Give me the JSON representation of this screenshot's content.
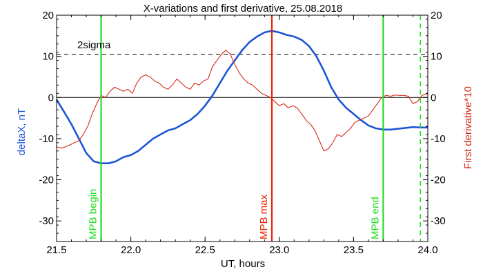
{
  "chart_data": {
    "type": "line",
    "title": "X-variations and first derivative, 25.08.2018",
    "xlabel": "UT, hours",
    "ylabel_left": "deltaX, nT",
    "ylabel_right": "First derivative*10",
    "xlim": [
      21.5,
      24.0
    ],
    "ylim": [
      -35,
      20
    ],
    "x_ticks": [
      21.5,
      22.0,
      22.5,
      23.0,
      23.5,
      24.0
    ],
    "x_tick_labels": [
      "21.5",
      "22.0",
      "22.5",
      "23.0",
      "23.5",
      "24.0"
    ],
    "y_ticks": [
      20,
      10,
      0,
      -10,
      -20,
      -30
    ],
    "y_tick_labels": [
      "20",
      "10",
      "0",
      "-10",
      "-20",
      "-30"
    ],
    "threshold": {
      "label": "2sigma",
      "y": 10.5
    },
    "zero_line": 0,
    "markers": [
      {
        "label": "MPB begin",
        "x": 21.8,
        "color": "#22dd22",
        "style": "solid"
      },
      {
        "label": "MPB max",
        "x": 22.95,
        "color": "#ee2200",
        "style": "solid"
      },
      {
        "label": "MPB end",
        "x": 23.7,
        "color": "#22dd22",
        "style": "solid"
      },
      {
        "label": "",
        "x": 23.95,
        "color": "#22dd22",
        "style": "dashed"
      }
    ],
    "series": [
      {
        "axis": "left",
        "color": "#1d55d4",
        "x": [
          21.5,
          21.55,
          21.6,
          21.65,
          21.7,
          21.75,
          21.8,
          21.85,
          21.9,
          21.95,
          22.0,
          22.05,
          22.1,
          22.15,
          22.2,
          22.25,
          22.3,
          22.35,
          22.4,
          22.45,
          22.5,
          22.55,
          22.6,
          22.65,
          22.7,
          22.75,
          22.8,
          22.85,
          22.9,
          22.95,
          23.0,
          23.05,
          23.1,
          23.15,
          23.2,
          23.25,
          23.3,
          23.35,
          23.4,
          23.45,
          23.5,
          23.55,
          23.6,
          23.65,
          23.7,
          23.75,
          23.8,
          23.85,
          23.9,
          23.95,
          24.0
        ],
        "values": [
          -0.5,
          -3.5,
          -6.5,
          -10.0,
          -13.5,
          -15.5,
          -16.0,
          -16.0,
          -15.5,
          -14.5,
          -14.0,
          -13.0,
          -11.5,
          -10.0,
          -9.0,
          -8.0,
          -7.5,
          -6.5,
          -5.5,
          -4.0,
          -2.0,
          0.5,
          3.5,
          6.5,
          9.0,
          11.5,
          13.5,
          14.8,
          15.8,
          16.2,
          15.8,
          15.2,
          14.8,
          14.0,
          12.5,
          10.0,
          6.5,
          2.5,
          -0.5,
          -2.5,
          -4.0,
          -5.5,
          -6.8,
          -7.5,
          -7.8,
          -7.8,
          -7.6,
          -7.4,
          -7.2,
          -7.3,
          -7.3
        ]
      },
      {
        "axis": "right",
        "color": "#d42a1a",
        "x": [
          21.5,
          21.53,
          21.56,
          21.59,
          21.62,
          21.65,
          21.68,
          21.71,
          21.74,
          21.77,
          21.8,
          21.83,
          21.86,
          21.89,
          21.92,
          21.95,
          21.98,
          22.01,
          22.04,
          22.07,
          22.1,
          22.13,
          22.16,
          22.19,
          22.22,
          22.25,
          22.28,
          22.31,
          22.34,
          22.37,
          22.4,
          22.43,
          22.46,
          22.49,
          22.52,
          22.55,
          22.58,
          22.61,
          22.64,
          22.67,
          22.7,
          22.73,
          22.76,
          22.79,
          22.82,
          22.85,
          22.88,
          22.91,
          22.94,
          22.97,
          23.0,
          23.03,
          23.06,
          23.09,
          23.12,
          23.15,
          23.18,
          23.21,
          23.24,
          23.27,
          23.3,
          23.33,
          23.36,
          23.39,
          23.42,
          23.45,
          23.48,
          23.51,
          23.54,
          23.57,
          23.6,
          23.63,
          23.66,
          23.69,
          23.72,
          23.75,
          23.78,
          23.81,
          23.84,
          23.87,
          23.9,
          23.93,
          23.96,
          24.0
        ],
        "values": [
          -12.0,
          -12.3,
          -12.0,
          -11.5,
          -11.0,
          -10.5,
          -9.0,
          -7.0,
          -4.0,
          -1.5,
          0.5,
          0.0,
          1.5,
          2.5,
          2.0,
          1.5,
          2.0,
          1.0,
          3.5,
          5.0,
          5.5,
          5.0,
          4.0,
          3.5,
          2.5,
          2.0,
          3.0,
          4.5,
          3.5,
          2.5,
          2.0,
          3.5,
          3.0,
          4.0,
          4.5,
          7.5,
          9.0,
          10.5,
          11.5,
          10.5,
          8.0,
          6.0,
          4.5,
          3.5,
          3.0,
          2.0,
          1.0,
          0.5,
          0.0,
          -1.0,
          -2.0,
          -1.5,
          -2.5,
          -2.0,
          -2.5,
          -4.0,
          -5.5,
          -6.5,
          -8.0,
          -10.5,
          -13.0,
          -12.5,
          -11.0,
          -9.0,
          -9.5,
          -8.5,
          -7.5,
          -6.0,
          -5.5,
          -5.0,
          -4.5,
          -3.0,
          -1.5,
          0.0,
          0.5,
          0.3,
          0.6,
          0.5,
          0.5,
          0.3,
          -1.5,
          -1.0,
          0.5,
          1.0
        ]
      }
    ]
  }
}
